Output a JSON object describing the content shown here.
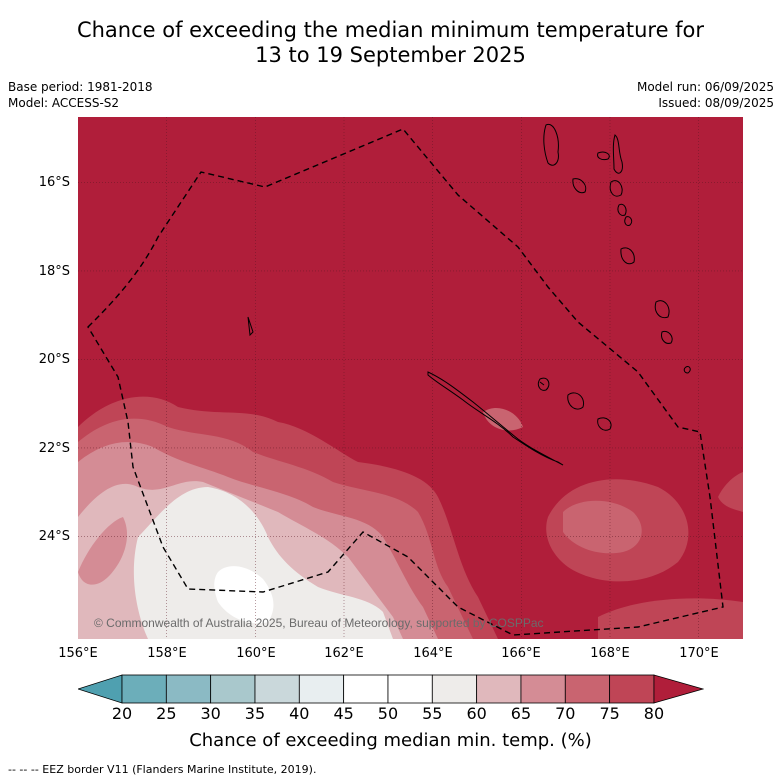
{
  "title_line1": "Chance of exceeding the median minimum temperature for",
  "title_line2": "13 to 19 September 2025",
  "base_period": "Base period: 1981-2018",
  "model": "Model: ACCESS-S2",
  "model_run": "Model run: 06/09/2025",
  "issued": "Issued: 08/09/2025",
  "copyright": "© Commonwealth of Australia 2025, Bureau of Meteorology, supported by COSPPac",
  "lat_labels": [
    "16°S",
    "18°S",
    "20°S",
    "22°S",
    "24°S"
  ],
  "lon_labels": [
    "156°E",
    "158°E",
    "160°E",
    "162°E",
    "164°E",
    "166°E",
    "168°E",
    "170°E"
  ],
  "colorbar": {
    "ticks": [
      "20",
      "25",
      "30",
      "35",
      "40",
      "45",
      "50",
      "55",
      "60",
      "65",
      "70",
      "75",
      "80"
    ],
    "label": "Chance of exceeding median min. temp. (%)",
    "colors": [
      "#4fa0b0",
      "#6caeba",
      "#8bbac4",
      "#a9c8cc",
      "#cad8db",
      "#e8eef0",
      "#ffffff",
      "#ffffff",
      "#eeecea",
      "#e0b8bc",
      "#d48c95",
      "#c96470",
      "#bf4556",
      "#b01e3a"
    ]
  },
  "legend_note": "--  --  -- EEZ border V11 (Flanders Marine Institute, 2019).",
  "map": {
    "lon_range": [
      156,
      171
    ],
    "lat_range": [
      -26.4,
      -14.6
    ],
    "background_color": "#b01e3a",
    "gridlines": true
  }
}
